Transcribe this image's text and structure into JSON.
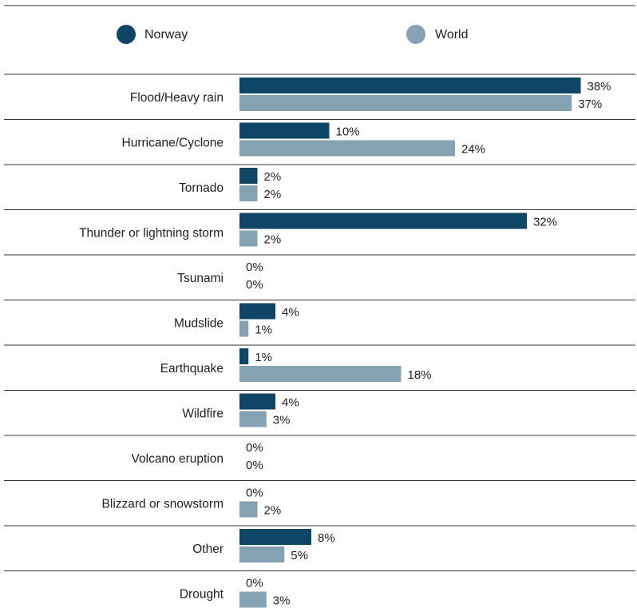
{
  "chart_data": {
    "type": "bar",
    "orientation": "horizontal",
    "title": "",
    "xlabel": "",
    "ylabel": "",
    "xlim": [
      0,
      40
    ],
    "grid": false,
    "legend_placement": "top",
    "value_suffix": "%",
    "categories": [
      "Flood/Heavy rain",
      "Hurricane/Cyclone",
      "Tornado",
      "Thunder or lightning storm",
      "Tsunami",
      "Mudslide",
      "Earthquake",
      "Wildfire",
      "Volcano eruption",
      "Blizzard or snowstorm",
      "Other",
      "Drought"
    ],
    "series": [
      {
        "name": "Norway",
        "color": "#0f4566",
        "values": [
          38,
          10,
          2,
          32,
          0,
          4,
          1,
          4,
          0,
          0,
          8,
          0
        ]
      },
      {
        "name": "World",
        "color": "#85a2b2",
        "values": [
          37,
          24,
          2,
          2,
          0,
          1,
          18,
          3,
          0,
          2,
          5,
          3
        ]
      }
    ]
  }
}
